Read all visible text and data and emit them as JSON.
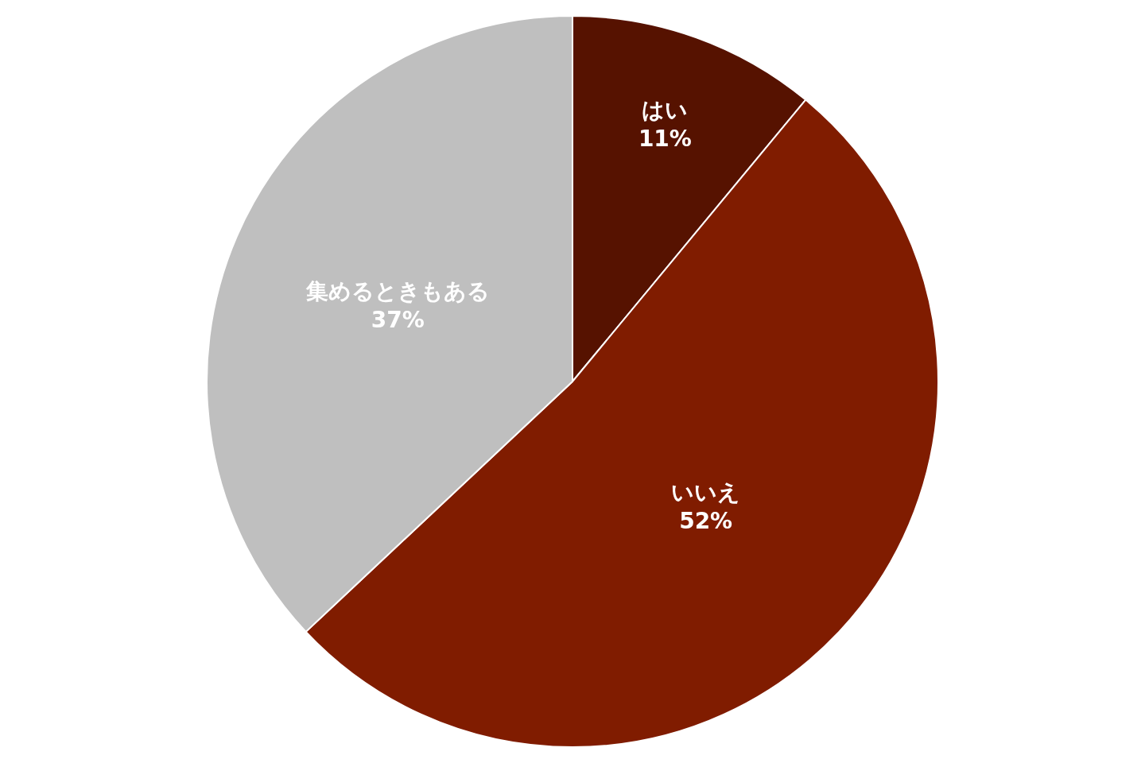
{
  "chart_data": {
    "type": "pie",
    "categories": [
      "はい",
      "いいえ",
      "集めるときもある"
    ],
    "values": [
      11,
      52,
      37
    ],
    "value_labels": [
      "11%",
      "52%",
      "37%"
    ],
    "colors": [
      "#561200",
      "#801c00",
      "#bfbfbf"
    ],
    "legend": false
  }
}
